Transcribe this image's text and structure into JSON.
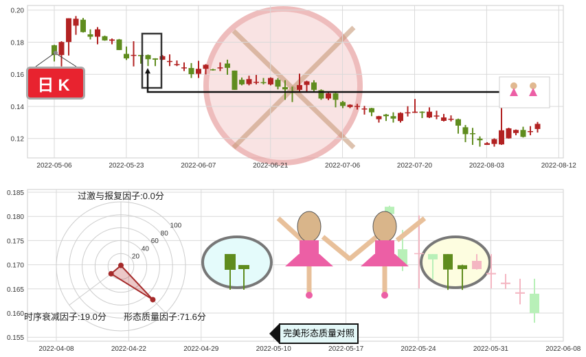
{
  "colors": {
    "up": "#b22222",
    "down": "#5f8c1e",
    "grid": "#d9d9d9",
    "faded_up": "#f4b6c2",
    "faded_down": "#b8f0b8"
  },
  "badge": {
    "label": "日K"
  },
  "compare_label": "完美形态质量对照",
  "chart_data": [
    {
      "type": "candlestick",
      "title": "",
      "ylim": [
        0.108,
        0.202
      ],
      "yticks": [
        "0.12",
        "0.14",
        "0.16",
        "0.18",
        "0.20"
      ],
      "xticks": [
        "2022-05-06",
        "2022-05-23",
        "2022-06-07",
        "2022-06-21",
        "2022-07-06",
        "2022-07-20",
        "2022-08-03",
        "2022-08-12"
      ],
      "grid": true,
      "ohlc": [
        [
          0.1781,
          0.1784,
          0.168,
          0.172
        ],
        [
          0.172,
          0.1806,
          0.1649,
          0.1801
        ],
        [
          0.1801,
          0.1949,
          0.1717,
          0.1949
        ],
        [
          0.1903,
          0.1963,
          0.1846,
          0.1946
        ],
        [
          0.194,
          0.1951,
          0.186,
          0.1863
        ],
        [
          0.1849,
          0.188,
          0.1817,
          0.1834
        ],
        [
          0.1834,
          0.1894,
          0.1787,
          0.188
        ],
        [
          0.1837,
          0.1841,
          0.1809,
          0.1811
        ],
        [
          0.1809,
          0.1823,
          0.1787,
          0.1817
        ],
        [
          0.1817,
          0.182,
          0.1751,
          0.1751
        ],
        [
          0.1727,
          0.1773,
          0.1689,
          0.1699
        ],
        [
          0.1718,
          0.1806,
          0.1649,
          0.1721
        ],
        [
          0.172,
          0.172,
          0.1666,
          0.1713
        ],
        [
          0.172,
          0.1723,
          0.1651,
          0.1694
        ],
        [
          0.1699,
          0.17,
          0.1651,
          0.1691
        ],
        [
          0.1691,
          0.172,
          0.1689,
          0.1713
        ],
        [
          0.168,
          0.1724,
          0.1651,
          0.1683
        ],
        [
          0.166,
          0.1686,
          0.1651,
          0.1663
        ],
        [
          0.164,
          0.1674,
          0.162,
          0.1643
        ],
        [
          0.1639,
          0.167,
          0.1577,
          0.1601
        ],
        [
          0.1603,
          0.1684,
          0.1577,
          0.1634
        ],
        [
          0.1634,
          0.1663,
          0.1599,
          0.1659
        ],
        [
          0.1631,
          0.1634,
          0.1623,
          0.1626
        ],
        [
          0.164,
          0.1674,
          0.162,
          0.1643
        ],
        [
          0.1667,
          0.1691,
          0.1597,
          0.164
        ],
        [
          0.1623,
          0.1623,
          0.1503,
          0.1503
        ],
        [
          0.1566,
          0.158,
          0.1531,
          0.1537
        ],
        [
          0.1539,
          0.1591,
          0.1531,
          0.157
        ],
        [
          0.155,
          0.1596,
          0.1537,
          0.1553
        ],
        [
          0.1551,
          0.1577,
          0.1537,
          0.1546
        ],
        [
          0.1537,
          0.1581,
          0.1531,
          0.1577
        ],
        [
          0.1566,
          0.1577,
          0.1506,
          0.1523
        ],
        [
          0.152,
          0.1563,
          0.1441,
          0.1506
        ],
        [
          0.149,
          0.1523,
          0.1427,
          0.1487
        ],
        [
          0.1503,
          0.1604,
          0.1491,
          0.1533
        ],
        [
          0.1534,
          0.156,
          0.1491,
          0.1556
        ],
        [
          0.1549,
          0.1563,
          0.1491,
          0.1503
        ],
        [
          0.1501,
          0.1506,
          0.1441,
          0.1449
        ],
        [
          0.1449,
          0.1489,
          0.1439,
          0.1481
        ],
        [
          0.1481,
          0.1484,
          0.1394,
          0.1441
        ],
        [
          0.1427,
          0.1434,
          0.1389,
          0.1403
        ],
        [
          0.1396,
          0.1413,
          0.1389,
          0.141
        ],
        [
          0.14,
          0.1416,
          0.138,
          0.1403
        ],
        [
          0.1383,
          0.1403,
          0.1349,
          0.1387
        ],
        [
          0.1389,
          0.1391,
          0.1339,
          0.1363
        ],
        [
          0.132,
          0.1341,
          0.1299,
          0.1339
        ],
        [
          0.1349,
          0.1353,
          0.1309,
          0.1339
        ],
        [
          0.1339,
          0.1363,
          0.1299,
          0.1324
        ],
        [
          0.1309,
          0.1363,
          0.1299,
          0.1359
        ],
        [
          0.136,
          0.1401,
          0.1337,
          0.1363
        ],
        [
          0.136,
          0.1446,
          0.1359,
          0.1367
        ],
        [
          0.1367,
          0.1369,
          0.1327,
          0.136
        ],
        [
          0.1331,
          0.1394,
          0.1327,
          0.1367
        ],
        [
          0.134,
          0.1373,
          0.132,
          0.1343
        ],
        [
          0.131,
          0.1353,
          0.1306,
          0.1331
        ],
        [
          0.132,
          0.1344,
          0.1306,
          0.1323
        ],
        [
          0.132,
          0.1324,
          0.123,
          0.128
        ],
        [
          0.127,
          0.1284,
          0.1177,
          0.1227
        ],
        [
          0.1233,
          0.1266,
          0.116,
          0.1229
        ],
        [
          0.1199,
          0.1213,
          0.1149,
          0.1189
        ],
        [
          0.116,
          0.1177,
          0.116,
          0.1171
        ],
        [
          0.1166,
          0.1201,
          0.1149,
          0.1196
        ],
        [
          0.1163,
          0.1391,
          0.116,
          0.1251
        ],
        [
          0.1201,
          0.1267,
          0.1199,
          0.1263
        ],
        [
          0.1234,
          0.1256,
          0.122,
          0.1253
        ],
        [
          0.1253,
          0.1273,
          0.1206,
          0.121
        ],
        [
          0.1243,
          0.1277,
          0.122,
          0.1246
        ],
        [
          0.1259,
          0.1303,
          0.1237,
          0.1291
        ]
      ]
    },
    {
      "type": "candlestick",
      "title": "",
      "ylim": [
        0.1535,
        0.1855
      ],
      "yticks": [
        "0.155",
        "0.160",
        "0.165",
        "0.170",
        "0.175",
        "0.180",
        "0.185"
      ],
      "xticks": [
        "2022-04-08",
        "2022-04-22",
        "2022-04-29",
        "2022-05-10",
        "2022-05-17",
        "2022-05-24",
        "2022-05-31",
        "2022-06-08"
      ],
      "grid": true,
      "candles": [
        {
          "o": 0.182,
          "h": 0.1822,
          "l": 0.1805,
          "c": 0.1805,
          "style": "faded"
        },
        {
          "o": 0.1732,
          "h": 0.1772,
          "l": 0.1687,
          "c": 0.1701,
          "style": "faded"
        },
        {
          "o": 0.1722,
          "h": 0.1802,
          "l": 0.1651,
          "c": 0.1724,
          "style": "faded"
        },
        {
          "o": 0.1722,
          "h": 0.1722,
          "l": 0.167,
          "c": 0.1711,
          "style": "faded"
        },
        {
          "o": 0.1722,
          "h": 0.1722,
          "l": 0.1648,
          "c": 0.169,
          "style": "solid"
        },
        {
          "o": 0.1699,
          "h": 0.17,
          "l": 0.1648,
          "c": 0.1691,
          "style": "solid"
        },
        {
          "o": 0.1691,
          "h": 0.1722,
          "l": 0.169,
          "c": 0.1708,
          "style": "faded"
        },
        {
          "o": 0.168,
          "h": 0.1722,
          "l": 0.1651,
          "c": 0.1683,
          "style": "faded"
        },
        {
          "o": 0.166,
          "h": 0.1681,
          "l": 0.165,
          "c": 0.1663,
          "style": "faded"
        },
        {
          "o": 0.164,
          "h": 0.1671,
          "l": 0.1618,
          "c": 0.1643,
          "style": "faded"
        },
        {
          "o": 0.164,
          "h": 0.1671,
          "l": 0.158,
          "c": 0.16,
          "style": "faded"
        }
      ]
    },
    {
      "type": "radar",
      "rticks": [
        "20",
        "40",
        "60",
        "80",
        "100"
      ],
      "axes": [
        {
          "label": "过激与报复因子:0.0分",
          "value": 0.0
        },
        {
          "label": "时序衰减因子:19.0分",
          "value": 19.0
        },
        {
          "label": "形态质量因子:71.6分",
          "value": 71.6
        }
      ]
    }
  ]
}
